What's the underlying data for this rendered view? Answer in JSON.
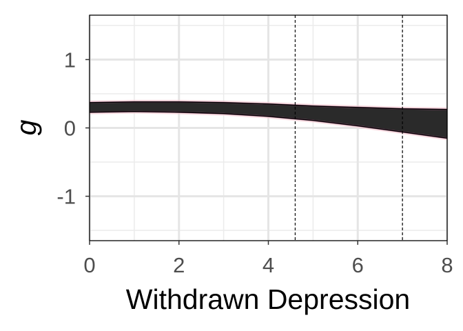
{
  "chart_data": {
    "type": "area",
    "xlabel": "Withdrawn Depression",
    "ylabel": "g",
    "xlim": [
      0,
      8
    ],
    "ylim": [
      -1.65,
      1.65
    ],
    "x_ticks": [
      0,
      2,
      4,
      6,
      8
    ],
    "x_tick_labels": [
      "0",
      "2",
      "4",
      "6",
      "8"
    ],
    "y_ticks": [
      -1,
      0,
      1
    ],
    "y_tick_labels": [
      "-1",
      "0",
      "1"
    ],
    "grid": true,
    "legend": "none",
    "reference_lines_x": [
      4.6,
      7.0
    ],
    "series": [
      {
        "type": "band",
        "x": [
          0,
          1,
          2,
          3,
          4,
          5,
          6,
          7,
          8
        ],
        "upper": [
          0.37,
          0.38,
          0.38,
          0.37,
          0.35,
          0.32,
          0.3,
          0.28,
          0.27
        ],
        "lower": [
          0.23,
          0.24,
          0.23,
          0.21,
          0.17,
          0.11,
          0.03,
          -0.06,
          -0.15
        ],
        "colors": {
          "core": "#2a2a2a",
          "halo": "#7a3a60",
          "outer": "#f3cdd4",
          "edge": "#000000"
        }
      }
    ]
  }
}
